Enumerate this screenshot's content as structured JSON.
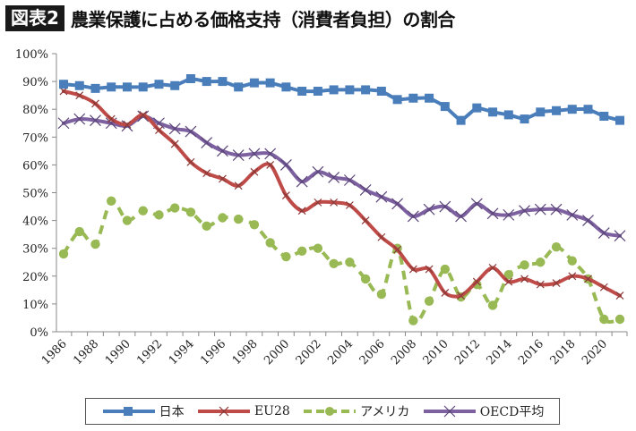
{
  "header": {
    "badge": "図表2",
    "title": "農業保護に占める価格支持（消費者負担）の割合"
  },
  "colors": {
    "japan": "#4a7ebb",
    "eu28": "#be4b48",
    "usa": "#98b954",
    "oecd": "#7d60a0",
    "axis": "#888888"
  },
  "chart_data": {
    "type": "line",
    "title": "農業保護に占める価格支持（消費者負担）の割合",
    "xlabel": "",
    "ylabel": "",
    "ylim": [
      0,
      100
    ],
    "grid": false,
    "legend_position": "bottom",
    "y_ticks": [
      "0%",
      "10%",
      "20%",
      "30%",
      "40%",
      "50%",
      "60%",
      "70%",
      "80%",
      "90%",
      "100%"
    ],
    "x_tick_labels": [
      "1986",
      "1988",
      "1990",
      "1992",
      "1994",
      "1996",
      "1998",
      "2000",
      "2002",
      "2004",
      "2006",
      "2008",
      "2010",
      "2012",
      "2014",
      "2016",
      "2018",
      "2020"
    ],
    "x": [
      1986,
      1987,
      1988,
      1989,
      1990,
      1991,
      1992,
      1993,
      1994,
      1995,
      1996,
      1997,
      1998,
      1999,
      2000,
      2001,
      2002,
      2003,
      2004,
      2005,
      2006,
      2007,
      2008,
      2009,
      2010,
      2011,
      2012,
      2013,
      2014,
      2015,
      2016,
      2017,
      2018,
      2019,
      2020,
      2021
    ],
    "series": [
      {
        "name": "日本",
        "key": "japan",
        "marker": "square",
        "dash": false,
        "values": [
          89,
          88.5,
          87.5,
          88,
          88,
          88,
          89,
          88.5,
          91,
          90,
          90,
          88,
          89.5,
          89.5,
          88,
          86.5,
          86.5,
          87,
          87,
          87,
          86.5,
          83.5,
          84,
          84,
          81,
          76,
          80.5,
          79,
          78,
          76.5,
          79,
          79.5,
          80,
          80,
          77.5,
          76
        ]
      },
      {
        "name": "EU28",
        "key": "eu28",
        "marker": "x",
        "dash": false,
        "values": [
          86.5,
          85,
          82,
          76.5,
          74.5,
          78,
          72.5,
          67.5,
          61,
          57,
          55,
          52.5,
          57.5,
          60,
          49,
          43.5,
          46.5,
          46.5,
          45.5,
          40,
          34,
          29.5,
          22.5,
          22.5,
          14,
          13,
          18,
          23,
          18,
          19,
          17,
          17.5,
          20,
          19,
          16,
          13
        ]
      },
      {
        "name": "アメリカ",
        "key": "usa",
        "marker": "circle",
        "dash": true,
        "values": [
          28,
          36,
          31.5,
          47,
          40,
          43.5,
          42,
          44.5,
          43,
          38,
          41,
          40.5,
          38.5,
          32,
          27,
          29,
          30,
          24.5,
          25,
          19,
          13.5,
          30,
          4,
          11,
          22.5,
          12.5,
          17,
          9.5,
          20.5,
          24,
          25,
          30.5,
          25.5,
          19,
          4.5,
          4.5
        ]
      },
      {
        "name": "OECD平均",
        "key": "oecd",
        "marker": "star",
        "dash": false,
        "values": [
          75,
          76.5,
          76,
          75,
          74,
          77.5,
          75,
          73,
          72,
          68,
          65,
          63.5,
          64,
          64,
          60,
          54,
          57.5,
          55.5,
          54.5,
          51,
          48.5,
          46,
          41.5,
          44,
          45,
          41.5,
          46,
          42.5,
          42,
          43.5,
          44,
          44,
          42,
          40,
          35.5,
          34.5
        ]
      }
    ]
  }
}
